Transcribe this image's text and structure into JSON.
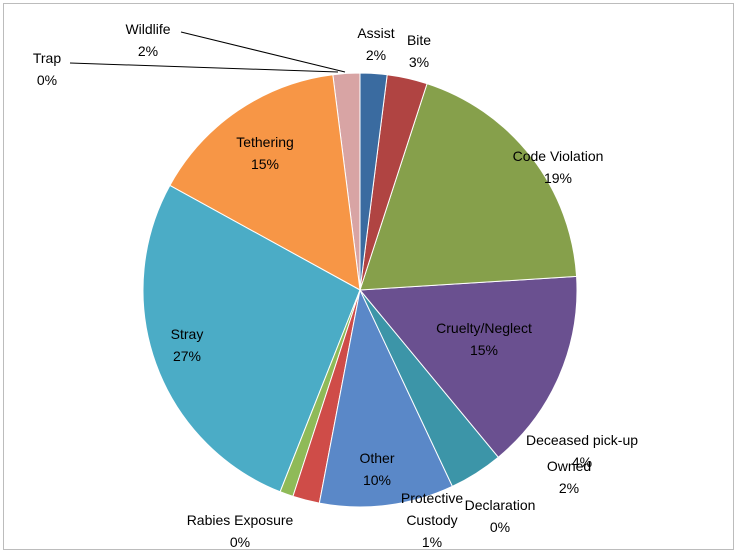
{
  "chart_data": {
    "type": "pie",
    "categories": [
      "Assist",
      "Bite",
      "Code Violation",
      "Cruelty/Neglect",
      "Deceased pick-up",
      "Declaration",
      "Other",
      "Owned",
      "Protective Custody",
      "Rabies Exposure",
      "Stray",
      "Tethering",
      "Trap",
      "Wildlife"
    ],
    "values": [
      2,
      3,
      19,
      15,
      4,
      0,
      10,
      2,
      1,
      0,
      27,
      15,
      0,
      2
    ],
    "value_labels": [
      "2%",
      "3%",
      "19%",
      "15%",
      "4%",
      "0%",
      "10%",
      "2%",
      "1%",
      "0%",
      "27%",
      "15%",
      "0%",
      "2%"
    ],
    "colors": [
      "#3a6ba0",
      "#b04442",
      "#86a04b",
      "#6a5090",
      "#3c95a8",
      "#e0883a",
      "#5a88c8",
      "#cf4c48",
      "#8fba58",
      "#8064a2",
      "#4bacc6",
      "#f79646",
      "#6d8fc6",
      "#d8a4a4"
    ]
  }
}
